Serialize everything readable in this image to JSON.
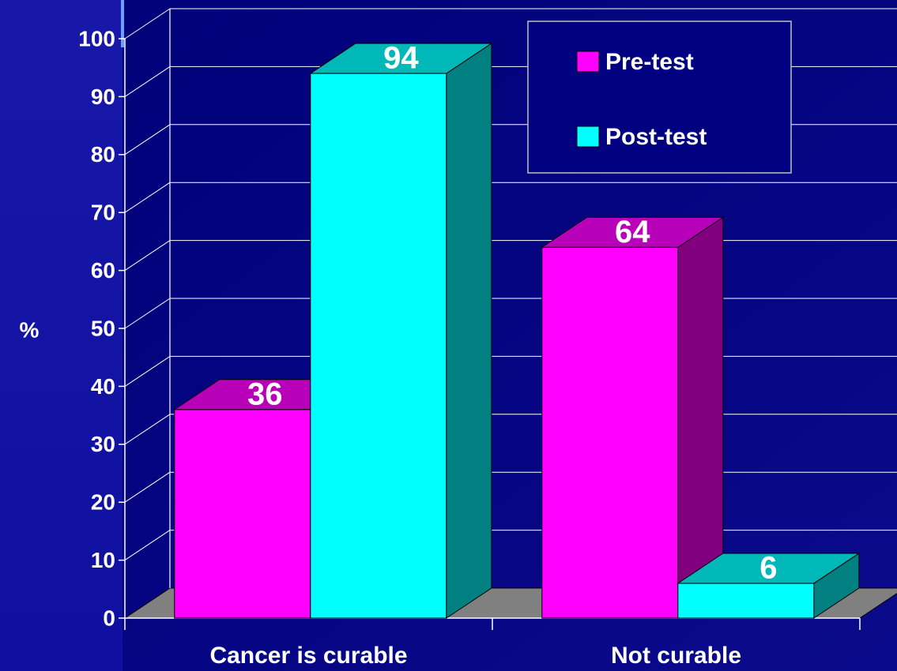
{
  "chart_data": {
    "type": "bar3d",
    "categories": [
      "Cancer is curable",
      "Not curable"
    ],
    "y_label": "%",
    "series": [
      {
        "name": "Pre-test",
        "color": "#ff00ff",
        "values": [
          36,
          64
        ]
      },
      {
        "name": "Post-test",
        "color": "#00ffff",
        "values": [
          94,
          6
        ]
      }
    ],
    "ylim": [
      0,
      100
    ],
    "yticks": [
      0,
      10,
      20,
      30,
      40,
      50,
      60,
      70,
      80,
      90,
      100
    ],
    "grid": true,
    "legend": "upper right"
  }
}
